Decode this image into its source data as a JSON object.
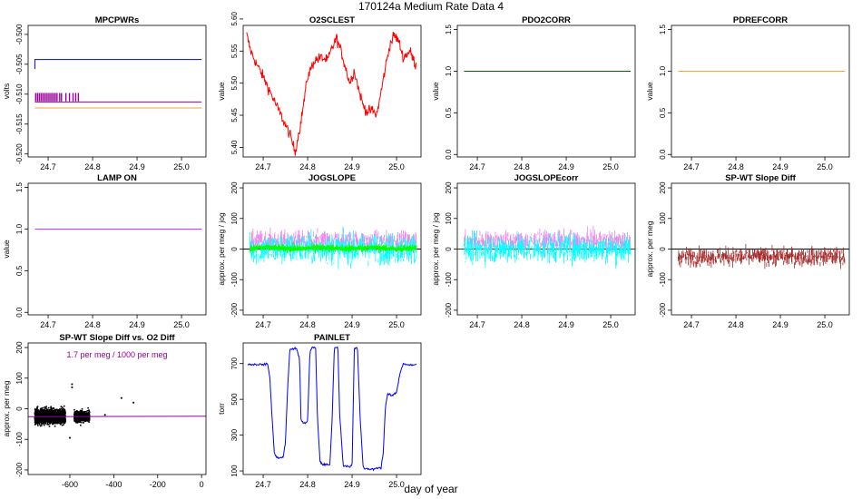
{
  "figure": {
    "title": "170124a   Medium Rate Data 4",
    "xlabel": "day of year"
  },
  "colors": {
    "blue": "#0000ff",
    "purple": "#990099",
    "orange": "#f5a623",
    "red": "#ff0000",
    "green": "#006400",
    "violet": "#cc33ff",
    "cyan": "#00ffff",
    "magenta": "#ee82ee",
    "lime": "#00ff00",
    "brown": "#a52a2a",
    "black": "#000000",
    "axis": "#000000"
  },
  "chart_data": [
    {
      "type": "line",
      "title": "MPCPWRs",
      "ylabel": "volts",
      "xlim": [
        24.655,
        25.055
      ],
      "ylim": [
        -0.5205,
        -0.4985
      ],
      "xticks": [
        24.7,
        24.8,
        24.9,
        25.0
      ],
      "xtick_labels": [
        "24.7",
        "24.8",
        "24.9",
        "25.0"
      ],
      "yticks": [
        -0.52,
        -0.515,
        -0.51,
        -0.505,
        -0.5
      ],
      "ytick_labels": [
        "-0.520",
        "-0.515",
        "-0.510",
        "-0.505",
        "-0.500"
      ],
      "series": [
        {
          "color": "blue",
          "points": [
            [
              24.67,
              -0.5058
            ],
            [
              24.67,
              -0.5042
            ],
            [
              24.672,
              -0.5042
            ],
            [
              25.045,
              -0.5042
            ]
          ]
        },
        {
          "color": "purple",
          "points": [
            [
              24.67,
              -0.5113
            ],
            [
              25.045,
              -0.5113
            ]
          ]
        },
        {
          "color": "purple",
          "kind": "bars",
          "range": [
            -0.5112,
            -0.5098
          ],
          "x": [
            24.672,
            24.676,
            24.68,
            24.684,
            24.688,
            24.692,
            24.696,
            24.7,
            24.704,
            24.708,
            24.712,
            24.716,
            24.72,
            24.726,
            24.73,
            24.74,
            24.748,
            24.756,
            24.762,
            24.768
          ]
        },
        {
          "color": "orange",
          "points": [
            [
              24.67,
              -0.5123
            ],
            [
              25.045,
              -0.5123
            ]
          ]
        }
      ]
    },
    {
      "type": "line",
      "title": "O2SCLEST",
      "ylabel": "value",
      "xlim": [
        24.655,
        25.055
      ],
      "ylim": [
        5.385,
        5.59
      ],
      "xticks": [
        24.7,
        24.8,
        24.9,
        25.0
      ],
      "xtick_labels": [
        "24.7",
        "24.8",
        "24.9",
        "25.0"
      ],
      "yticks": [
        5.4,
        5.45,
        5.5,
        5.55,
        5.6
      ],
      "ytick_labels": [
        "5.40",
        "5.45",
        "5.50",
        "5.55",
        "5.60"
      ],
      "series": [
        {
          "color": "red",
          "noise": 0.006,
          "points": [
            [
              24.663,
              5.575
            ],
            [
              24.672,
              5.55
            ],
            [
              24.685,
              5.53
            ],
            [
              24.7,
              5.51
            ],
            [
              24.72,
              5.48
            ],
            [
              24.74,
              5.45
            ],
            [
              24.76,
              5.42
            ],
            [
              24.772,
              5.393
            ],
            [
              24.785,
              5.44
            ],
            [
              24.8,
              5.51
            ],
            [
              24.815,
              5.535
            ],
            [
              24.83,
              5.54
            ],
            [
              24.845,
              5.535
            ],
            [
              24.855,
              5.555
            ],
            [
              24.865,
              5.57
            ],
            [
              24.875,
              5.55
            ],
            [
              24.885,
              5.525
            ],
            [
              24.895,
              5.5
            ],
            [
              24.905,
              5.52
            ],
            [
              24.915,
              5.49
            ],
            [
              24.925,
              5.465
            ],
            [
              24.935,
              5.455
            ],
            [
              24.945,
              5.458
            ],
            [
              24.955,
              5.45
            ],
            [
              24.965,
              5.485
            ],
            [
              24.975,
              5.525
            ],
            [
              24.985,
              5.56
            ],
            [
              24.995,
              5.575
            ],
            [
              25.005,
              5.565
            ],
            [
              25.015,
              5.54
            ],
            [
              25.03,
              5.55
            ],
            [
              25.045,
              5.525
            ]
          ]
        }
      ]
    },
    {
      "type": "line",
      "title": "PDO2CORR",
      "ylabel": "value",
      "xlim": [
        24.655,
        25.055
      ],
      "ylim": [
        -0.03,
        1.55
      ],
      "xticks": [
        24.7,
        24.8,
        24.9,
        25.0
      ],
      "xtick_labels": [
        "24.7",
        "24.8",
        "24.9",
        "25.0"
      ],
      "yticks": [
        0.0,
        0.5,
        1.0,
        1.5
      ],
      "ytick_labels": [
        "0.0",
        "0.5",
        "1.0",
        "1.5"
      ],
      "series": [
        {
          "color": "green",
          "points": [
            [
              24.67,
              1.0
            ],
            [
              25.045,
              1.0
            ]
          ]
        }
      ]
    },
    {
      "type": "line",
      "title": "PDREFCORR",
      "ylabel": "value",
      "xlim": [
        24.655,
        25.055
      ],
      "ylim": [
        -0.03,
        1.55
      ],
      "xticks": [
        24.7,
        24.8,
        24.9,
        25.0
      ],
      "xtick_labels": [
        "24.7",
        "24.8",
        "24.9",
        "25.0"
      ],
      "yticks": [
        0.0,
        0.5,
        1.0,
        1.5
      ],
      "ytick_labels": [
        "0.0",
        "0.5",
        "1.0",
        "1.5"
      ],
      "series": [
        {
          "color": "orange",
          "points": [
            [
              24.67,
              1.0
            ],
            [
              25.045,
              1.0
            ]
          ]
        }
      ]
    },
    {
      "type": "line",
      "title": "LAMP ON",
      "ylabel": "value",
      "xlim": [
        24.655,
        25.055
      ],
      "ylim": [
        -0.03,
        1.55
      ],
      "xticks": [
        24.7,
        24.8,
        24.9,
        25.0
      ],
      "xtick_labels": [
        "24.7",
        "24.8",
        "24.9",
        "25.0"
      ],
      "yticks": [
        0.0,
        0.5,
        1.0,
        1.5
      ],
      "ytick_labels": [
        "0.0",
        "0.5",
        "1.0",
        "1.5"
      ],
      "series": [
        {
          "color": "violet",
          "points": [
            [
              24.67,
              1.0
            ],
            [
              25.045,
              1.0
            ]
          ]
        }
      ]
    },
    {
      "type": "line",
      "title": "JOGSLOPE",
      "ylabel": "approx. per meg / jog",
      "xlim": [
        24.655,
        25.055
      ],
      "ylim": [
        -215,
        215
      ],
      "xticks": [
        24.7,
        24.8,
        24.9,
        25.0
      ],
      "xtick_labels": [
        "24.7",
        "24.8",
        "24.9",
        "25.0"
      ],
      "yticks": [
        -200,
        -100,
        0,
        100,
        200
      ],
      "ytick_labels": [
        "-200",
        "-100",
        "0",
        "100",
        "200"
      ],
      "hline": {
        "y": 0,
        "color": "black"
      },
      "series": [
        {
          "color": "magenta",
          "kind": "noise",
          "center": 25,
          "spread": 45,
          "x": [
            24.67,
            25.045
          ]
        },
        {
          "color": "cyan",
          "kind": "noise",
          "center": 0,
          "spread": 65,
          "x": [
            24.67,
            25.045
          ]
        },
        {
          "color": "lime",
          "kind": "band",
          "center": 3,
          "spread": 12,
          "x": [
            24.67,
            25.045
          ]
        }
      ]
    },
    {
      "type": "line",
      "title": "JOGSLOPEcorr",
      "ylabel": "approx. per meg / jog",
      "xlim": [
        24.655,
        25.055
      ],
      "ylim": [
        -215,
        215
      ],
      "xticks": [
        24.7,
        24.8,
        24.9,
        25.0
      ],
      "xtick_labels": [
        "24.7",
        "24.8",
        "24.9",
        "25.0"
      ],
      "yticks": [
        -200,
        -100,
        0,
        100,
        200
      ],
      "ytick_labels": [
        "-200",
        "-100",
        "0",
        "100",
        "200"
      ],
      "hline": {
        "y": 0,
        "color": "green"
      },
      "series": [
        {
          "color": "magenta",
          "kind": "noise",
          "center": 25,
          "spread": 45,
          "x": [
            24.67,
            25.045
          ]
        },
        {
          "color": "cyan",
          "kind": "noise",
          "center": 0,
          "spread": 60,
          "x": [
            24.67,
            25.045
          ]
        }
      ]
    },
    {
      "type": "line",
      "title": "SP-WT Slope Diff",
      "ylabel": "approx. per meg",
      "xlim": [
        24.655,
        25.055
      ],
      "ylim": [
        -215,
        215
      ],
      "xticks": [
        24.7,
        24.8,
        24.9,
        25.0
      ],
      "xtick_labels": [
        "24.7",
        "24.8",
        "24.9",
        "25.0"
      ],
      "yticks": [
        -200,
        -100,
        0,
        100,
        200
      ],
      "ytick_labels": [
        "-200",
        "-100",
        "0",
        "100",
        "200"
      ],
      "hline": {
        "y": 0,
        "color": "black"
      },
      "series": [
        {
          "color": "brown",
          "kind": "noise",
          "center": -25,
          "spread": 40,
          "x": [
            24.67,
            25.045
          ]
        }
      ]
    },
    {
      "type": "scatter",
      "title": "SP-WT Slope Diff vs. O2 Diff",
      "annotation": "1.7 per meg / 1000 per meg",
      "annotation_color": "purple",
      "ylabel": "approx. per meg",
      "xlim": [
        -790,
        20
      ],
      "ylim": [
        -215,
        215
      ],
      "xticks": [
        -600,
        -400,
        -200,
        0
      ],
      "xtick_labels": [
        "-600",
        "-400",
        "-200",
        "0"
      ],
      "yticks": [
        -200,
        -100,
        0,
        100,
        200
      ],
      "ytick_labels": [
        "-200",
        "-100",
        "0",
        "100",
        "200"
      ],
      "fit_line": {
        "color": "purple",
        "points": [
          [
            -790,
            -26
          ],
          [
            20,
            -24.6
          ]
        ]
      },
      "clusters": [
        {
          "color": "black",
          "x_range": [
            -760,
            -620
          ],
          "y_center": -25,
          "y_spread": 28,
          "count": 1500
        },
        {
          "color": "black",
          "x_range": [
            -580,
            -510
          ],
          "y_center": -25,
          "y_spread": 22,
          "count": 450
        }
      ],
      "outliers": [
        [
          -590,
          70
        ],
        [
          -365,
          35
        ],
        [
          -310,
          20
        ],
        [
          -440,
          -20
        ],
        [
          -600,
          -95
        ],
        [
          -590,
          80
        ]
      ]
    },
    {
      "type": "line",
      "title": "PAINLET",
      "ylabel": "torr",
      "xlim": [
        24.655,
        25.055
      ],
      "ylim": [
        80,
        815
      ],
      "xticks": [
        24.7,
        24.8,
        24.9,
        25.0
      ],
      "xtick_labels": [
        "24.7",
        "24.8",
        "24.9",
        "25.0"
      ],
      "yticks": [
        100,
        300,
        500,
        700
      ],
      "ytick_labels": [
        "100",
        "300",
        "500",
        "700"
      ],
      "series": [
        {
          "color": "blue",
          "noise": 4,
          "points": [
            [
              24.665,
              695
            ],
            [
              24.705,
              695
            ],
            [
              24.71,
              700
            ],
            [
              24.715,
              620
            ],
            [
              24.72,
              400
            ],
            [
              24.725,
              200
            ],
            [
              24.73,
              175
            ],
            [
              24.745,
              175
            ],
            [
              24.75,
              260
            ],
            [
              24.755,
              560
            ],
            [
              24.76,
              780
            ],
            [
              24.775,
              785
            ],
            [
              24.782,
              720
            ],
            [
              24.785,
              390
            ],
            [
              24.79,
              370
            ],
            [
              24.795,
              365
            ],
            [
              24.8,
              380
            ],
            [
              24.805,
              760
            ],
            [
              24.81,
              790
            ],
            [
              24.818,
              790
            ],
            [
              24.822,
              400
            ],
            [
              24.828,
              150
            ],
            [
              24.835,
              135
            ],
            [
              24.85,
              135
            ],
            [
              24.855,
              380
            ],
            [
              24.86,
              790
            ],
            [
              24.868,
              790
            ],
            [
              24.872,
              420
            ],
            [
              24.88,
              130
            ],
            [
              24.895,
              125
            ],
            [
              24.9,
              130
            ],
            [
              24.905,
              780
            ],
            [
              24.912,
              790
            ],
            [
              24.918,
              400
            ],
            [
              24.925,
              115
            ],
            [
              24.935,
              110
            ],
            [
              24.95,
              110
            ],
            [
              24.96,
              120
            ],
            [
              24.965,
              115
            ],
            [
              24.97,
              200
            ],
            [
              24.975,
              460
            ],
            [
              24.98,
              530
            ],
            [
              24.99,
              520
            ],
            [
              25.0,
              540
            ],
            [
              25.008,
              650
            ],
            [
              25.015,
              700
            ],
            [
              25.03,
              690
            ],
            [
              25.045,
              695
            ]
          ]
        }
      ]
    }
  ]
}
